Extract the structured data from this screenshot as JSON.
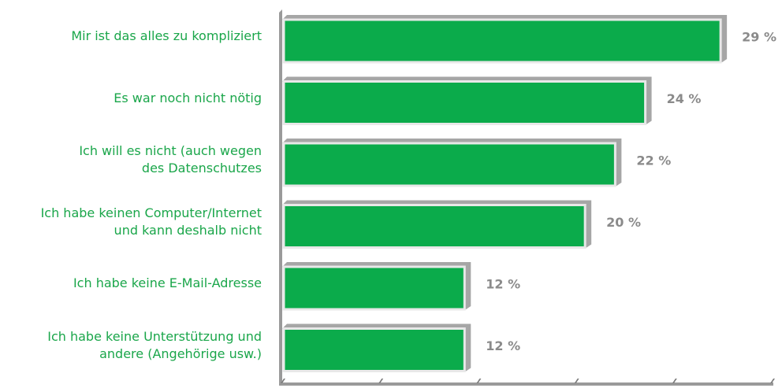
{
  "chart_data": {
    "type": "bar",
    "orientation": "horizontal",
    "categories": [
      "Mir ist das alles zu kompliziert",
      "Es war noch nicht nötig",
      "Ich will es nicht (auch wegen\ndes Datenschutzes",
      "Ich habe keinen Computer/Internet\nund kann deshalb nicht",
      "Ich habe keine E-Mail-Adresse",
      "Ich habe keine Unterstützung und\nandere (Angehörige usw.)"
    ],
    "values": [
      29,
      24,
      22,
      20,
      12,
      12
    ],
    "value_labels": [
      "29 %",
      "24 %",
      "22 %",
      "20 %",
      "12 %",
      "12 %"
    ],
    "color": "#0bab4b",
    "xlim": [
      0,
      32.5
    ],
    "xticks": [
      0,
      6.5,
      13,
      19.5,
      26,
      32.5
    ]
  }
}
